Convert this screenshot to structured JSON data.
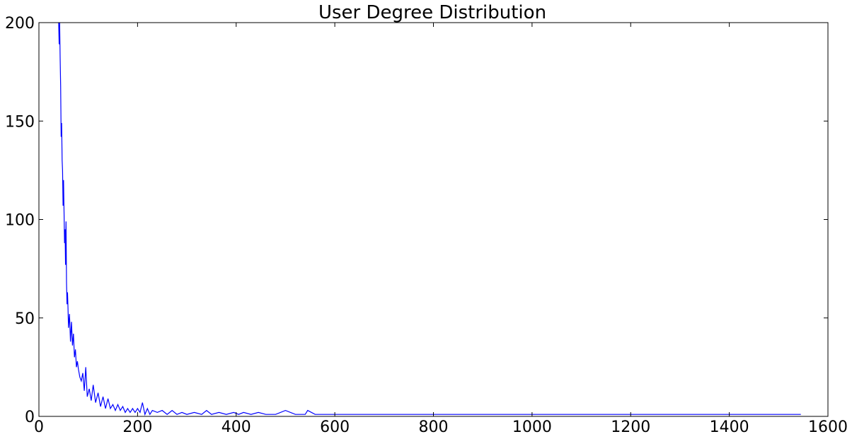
{
  "chart_data": {
    "type": "line",
    "title": "User Degree Distribution",
    "xlabel": "",
    "ylabel": "",
    "xlim": [
      0,
      1600
    ],
    "ylim": [
      0,
      200
    ],
    "xticks": [
      0,
      200,
      400,
      600,
      800,
      1000,
      1200,
      1400,
      1600
    ],
    "yticks": [
      0,
      50,
      100,
      150,
      200
    ],
    "grid": false,
    "line_color": "#0000ff",
    "series": [
      {
        "name": "",
        "x": [
          40,
          41,
          42,
          43,
          44,
          45,
          46,
          47,
          48,
          49,
          50,
          51,
          52,
          53,
          54,
          55,
          56,
          57,
          58,
          59,
          60,
          62,
          64,
          66,
          68,
          70,
          72,
          74,
          76,
          78,
          80,
          83,
          86,
          89,
          92,
          95,
          98,
          102,
          106,
          110,
          115,
          120,
          125,
          130,
          135,
          140,
          145,
          150,
          155,
          160,
          165,
          170,
          175,
          180,
          185,
          190,
          195,
          200,
          205,
          210,
          215,
          220,
          225,
          230,
          240,
          250,
          260,
          270,
          280,
          290,
          300,
          315,
          330,
          340,
          350,
          365,
          380,
          395,
          405,
          415,
          430,
          445,
          460,
          480,
          500,
          520,
          540,
          545,
          560,
          600,
          700,
          800,
          900,
          1000,
          1100,
          1200,
          1300,
          1400,
          1500,
          1545
        ],
        "y": [
          200,
          189,
          200,
          182,
          168,
          142,
          149,
          130,
          125,
          107,
          120,
          104,
          88,
          95,
          77,
          99,
          68,
          57,
          63,
          55,
          45,
          52,
          38,
          48,
          36,
          42,
          30,
          34,
          25,
          28,
          24,
          20,
          18,
          22,
          13,
          25,
          10,
          14,
          8,
          16,
          7,
          12,
          5,
          10,
          4,
          9,
          4,
          6,
          3,
          6,
          3,
          5,
          2,
          4,
          2,
          4,
          2,
          4,
          2,
          7,
          1,
          4,
          1,
          3,
          2,
          3,
          1,
          3,
          1,
          2,
          1,
          2,
          1,
          3,
          1,
          2,
          1,
          2,
          1,
          2,
          1,
          2,
          1,
          1,
          3,
          1,
          1,
          3,
          1,
          1,
          1,
          1,
          1,
          1,
          1,
          1,
          1,
          1,
          1,
          1
        ]
      }
    ]
  }
}
